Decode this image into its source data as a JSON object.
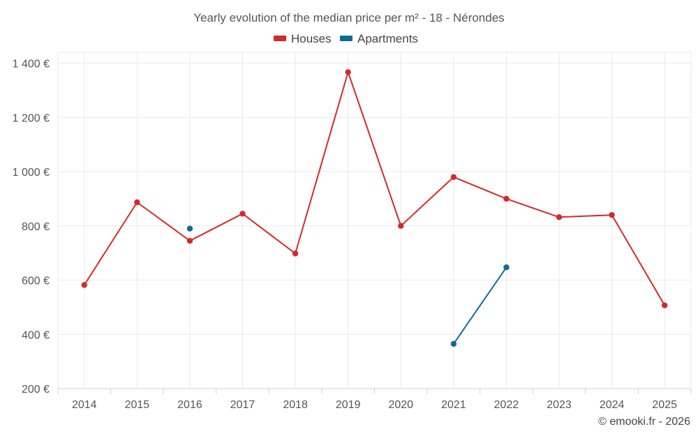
{
  "chart_data": {
    "type": "line",
    "title": "Yearly evolution of the median price per m² - 18 - Nérondes",
    "categories": [
      "2014",
      "2015",
      "2016",
      "2017",
      "2018",
      "2019",
      "2020",
      "2021",
      "2022",
      "2023",
      "2024",
      "2025"
    ],
    "y_ticks": [
      "200 €",
      "400 €",
      "600 €",
      "800 €",
      "1 000 €",
      "1 200 €",
      "1 400 €"
    ],
    "y_tick_values": [
      200,
      400,
      600,
      800,
      1000,
      1200,
      1400
    ],
    "ylim": [
      200,
      1440
    ],
    "grid": true,
    "legend_position": "top-center",
    "series": [
      {
        "name": "Houses",
        "color": "#d32a2a",
        "values": [
          582,
          887,
          745,
          845,
          698,
          1367,
          800,
          980,
          900,
          832,
          840,
          507
        ]
      },
      {
        "name": "Apartments",
        "color": "#0f6a9c",
        "values": [
          null,
          null,
          790,
          null,
          null,
          null,
          null,
          365,
          647,
          null,
          null,
          null
        ]
      }
    ]
  },
  "credit": "© emooki.fr - 2026"
}
